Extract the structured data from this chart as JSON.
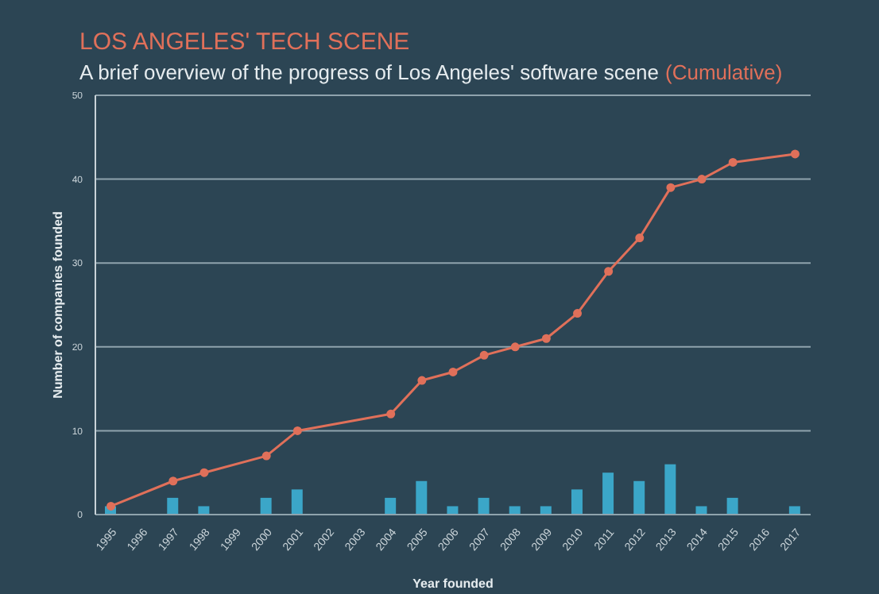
{
  "chart_data": {
    "type": "bar",
    "title": "LOS ANGELES' TECH SCENE",
    "subtitle": "A brief overview of the progress of Los Angeles' software scene",
    "xlabel": "Year founded",
    "ylabel": "Number of companies founded",
    "categories": [
      "1995",
      "1996",
      "1997",
      "1998",
      "1999",
      "2000",
      "2001",
      "2002",
      "2003",
      "2004",
      "2005",
      "2006",
      "2007",
      "2008",
      "2009",
      "2010",
      "2011",
      "2012",
      "2013",
      "2014",
      "2015",
      "2016",
      "2017"
    ],
    "series": [
      {
        "color": "#3ba6c8",
        "values": [
          1,
          null,
          2,
          1,
          null,
          2,
          3,
          null,
          null,
          2,
          4,
          1,
          2,
          1,
          1,
          3,
          5,
          4,
          6,
          1,
          2,
          null,
          1
        ]
      },
      {
        "type": "line",
        "name": "(Cumulative)",
        "color": "#e0705a",
        "marker": "circle",
        "values": [
          1,
          null,
          4,
          5,
          null,
          7,
          10,
          null,
          null,
          12,
          16,
          17,
          19,
          20,
          21,
          24,
          29,
          33,
          39,
          40,
          42,
          null,
          43
        ]
      }
    ],
    "ylim": [
      0,
      50
    ],
    "yticks": [
      0,
      10,
      20,
      30,
      40,
      50
    ],
    "grid": "y",
    "legend": "top"
  }
}
